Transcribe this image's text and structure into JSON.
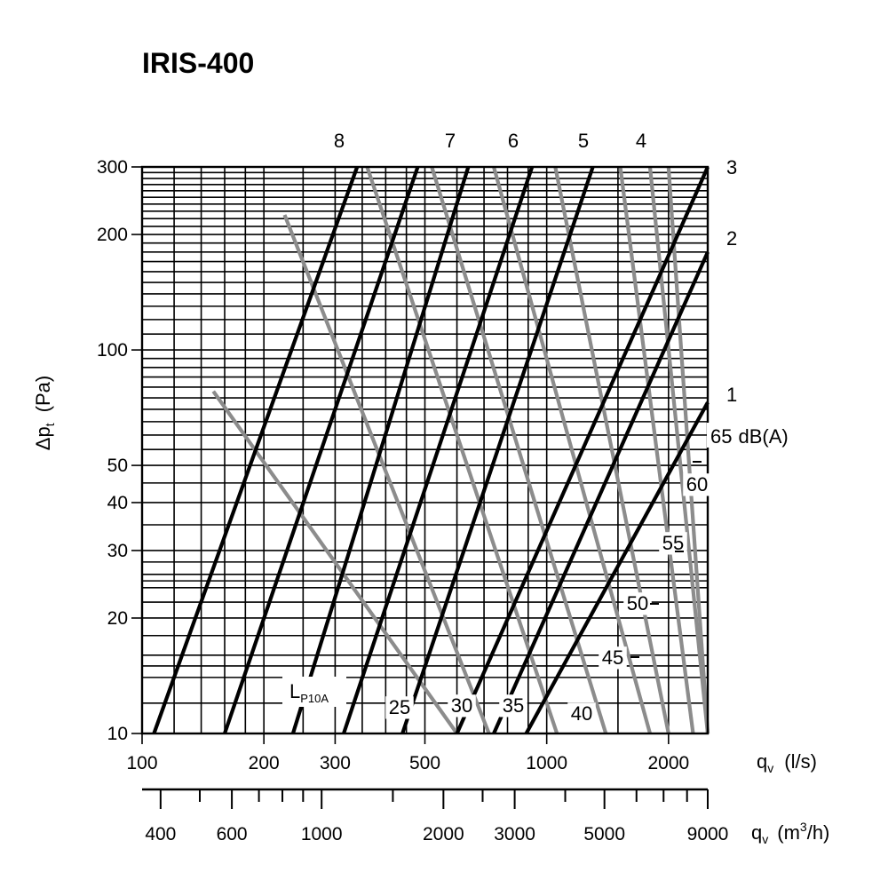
{
  "chart_data": {
    "type": "line",
    "title": "IRIS-400",
    "x_axis": {
      "label_main": "q",
      "label_sub": "v",
      "unit": "(l/s)",
      "scale": "log",
      "range": [
        100,
        2500
      ],
      "tick_labels": [
        "100",
        "200",
        "300",
        "500",
        "1000",
        "2000"
      ],
      "tick_values": [
        100,
        200,
        300,
        500,
        1000,
        2000
      ]
    },
    "x2_axis": {
      "label_main": "q",
      "label_sub": "v",
      "unit_prefix": "(m",
      "unit_sup": "3",
      "unit_suffix": "/h)",
      "scale": "log",
      "range": [
        360,
        9000
      ],
      "tick_labels": [
        "400",
        "600",
        "1000",
        "2000",
        "3000",
        "5000",
        "9000"
      ],
      "tick_values": [
        400,
        600,
        1000,
        2000,
        3000,
        5000,
        9000
      ]
    },
    "y_axis": {
      "label_main": "Δp",
      "label_sub": "t",
      "unit": "(Pa)",
      "scale": "log",
      "range": [
        10,
        300
      ],
      "tick_labels": [
        "10",
        "20",
        "30",
        "40",
        "50",
        "100",
        "200",
        "300"
      ],
      "tick_values": [
        10,
        20,
        30,
        40,
        50,
        100,
        200,
        300
      ]
    },
    "grid": true,
    "damper_positions": {
      "slope": 2,
      "series": [
        {
          "name": "8",
          "points": [
            [
              107,
              10
            ],
            [
              340,
              300
            ]
          ]
        },
        {
          "name": "7",
          "points": [
            [
              160,
              10
            ],
            [
              480,
              300
            ]
          ]
        },
        {
          "name": "6",
          "points": [
            [
              236,
              10
            ],
            [
              640,
              300
            ]
          ]
        },
        {
          "name": "5",
          "points": [
            [
              315,
              10
            ],
            [
              920,
              300
            ]
          ]
        },
        {
          "name": "4",
          "points": [
            [
              440,
              10
            ],
            [
              1300,
              300
            ]
          ]
        },
        {
          "name": "3",
          "points": [
            [
              600,
              10
            ],
            [
              2500,
              300
            ]
          ]
        },
        {
          "name": "2",
          "points": [
            [
              740,
              10
            ],
            [
              2500,
              180
            ]
          ]
        },
        {
          "name": "1",
          "points": [
            [
              890,
              10
            ],
            [
              2500,
              73
            ]
          ]
        }
      ]
    },
    "sound_levels": {
      "label_main": "L",
      "label_sub": "P10A",
      "unit": "dB(A)",
      "series": [
        {
          "name": "25",
          "points": [
            [
              150,
              78
            ],
            [
              600,
              10
            ]
          ]
        },
        {
          "name": "30",
          "points": [
            [
              225,
              225
            ],
            [
              720,
              10
            ]
          ]
        },
        {
          "name": "35",
          "points": [
            [
              360,
              300
            ],
            [
              1060,
              10
            ]
          ]
        },
        {
          "name": "40",
          "points": [
            [
              520,
              300
            ],
            [
              1400,
              10
            ]
          ]
        },
        {
          "name": "45",
          "points": [
            [
              740,
              300
            ],
            [
              1800,
              10
            ]
          ]
        },
        {
          "name": "50",
          "points": [
            [
              1050,
              300
            ],
            [
              2000,
              10
            ]
          ]
        },
        {
          "name": "55",
          "points": [
            [
              1520,
              300
            ],
            [
              2300,
              10
            ]
          ]
        },
        {
          "name": "60",
          "points": [
            [
              1800,
              300
            ],
            [
              2500,
              10
            ]
          ]
        },
        {
          "name": "65",
          "points": [
            [
              2000,
              300
            ],
            [
              2500,
              10
            ]
          ]
        }
      ]
    }
  }
}
